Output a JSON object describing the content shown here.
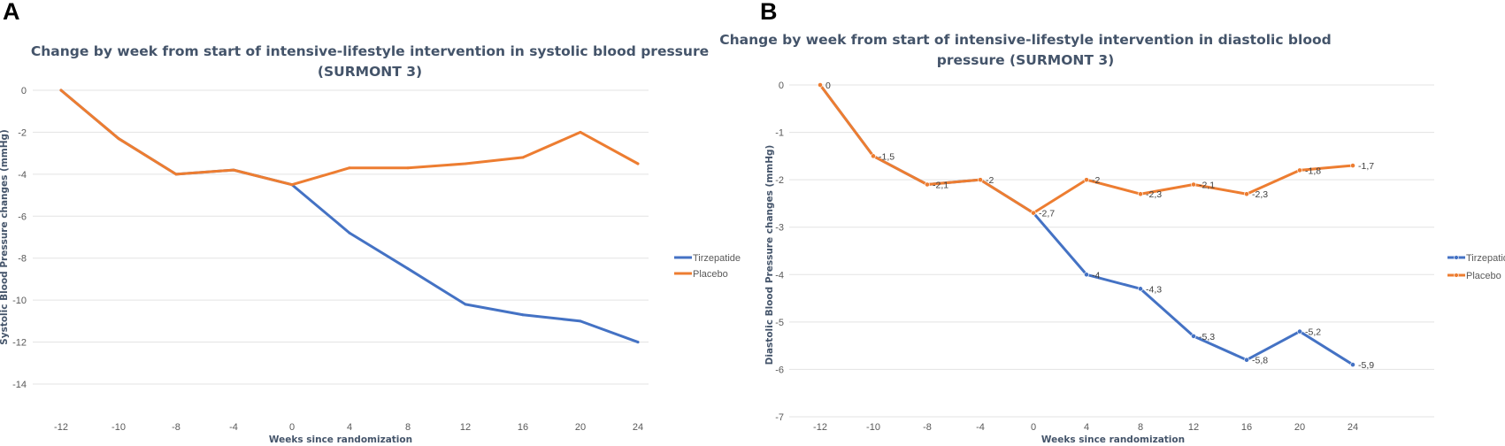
{
  "panels": [
    {
      "letter": "A"
    },
    {
      "letter": "B"
    }
  ],
  "chart_data": [
    {
      "type": "line",
      "title_lines": [
        "Change by week from start of intensive-lifestyle intervention in systolic blood pressure",
        "(SURMONT 3)"
      ],
      "xlabel": "Weeks since randomization",
      "ylabel": "Systolic Blood Pressure changes (mmHg)",
      "categories": [
        "-12",
        "-10",
        "-8",
        "-4",
        "0",
        "4",
        "8",
        "12",
        "16",
        "20",
        "24"
      ],
      "ylim": [
        -14,
        0
      ],
      "yticks": [
        0,
        -2,
        -4,
        -6,
        -8,
        -10,
        -12,
        -14
      ],
      "grid": true,
      "legend_position": "right",
      "markers": false,
      "data_labels": [],
      "series": [
        {
          "name": "Tirzepatide",
          "color": "#4472c4",
          "values": [
            0,
            -2.3,
            -4.0,
            -3.8,
            -4.5,
            -6.8,
            -8.5,
            -10.2,
            -10.7,
            -11.0,
            -12.0
          ]
        },
        {
          "name": "Placebo",
          "color": "#ed7d31",
          "values": [
            0,
            -2.3,
            -4.0,
            -3.8,
            -4.5,
            -3.7,
            -3.7,
            -3.5,
            -3.2,
            -2.0,
            -3.5
          ]
        }
      ]
    },
    {
      "type": "line",
      "title_lines": [
        "Change by week from start of intensive-lifestyle intervention in diastolic blood",
        "pressure (SURMONT 3)"
      ],
      "xlabel": "Weeks since randomization",
      "ylabel": "Diastolic Blood Pressure changes (mmHg)",
      "categories": [
        "-12",
        "-10",
        "-8",
        "-4",
        "0",
        "4",
        "8",
        "12",
        "16",
        "20",
        "24"
      ],
      "ylim": [
        -7,
        0
      ],
      "yticks": [
        0,
        -1,
        -2,
        -3,
        -4,
        -5,
        -6,
        -7
      ],
      "grid": true,
      "legend_position": "right",
      "markers": true,
      "data_labels": [
        {
          "text": "0",
          "category": "-12",
          "value": 0
        },
        {
          "text": "-1,5",
          "category": "-10",
          "value": -1.5
        },
        {
          "text": "-2,1",
          "category": "-8",
          "value": -2.1
        },
        {
          "text": "-2",
          "category": "-4",
          "value": -2.0
        },
        {
          "text": "-2,7",
          "category": "0",
          "value": -2.7
        },
        {
          "text": "-2",
          "category": "4",
          "value": -2.0
        },
        {
          "text": "-2,3",
          "category": "8",
          "value": -2.3
        },
        {
          "text": "-2,1",
          "category": "12",
          "value": -2.1
        },
        {
          "text": "-2,3",
          "category": "16",
          "value": -2.3
        },
        {
          "text": "-1,8",
          "category": "20",
          "value": -1.8
        },
        {
          "text": "-1,7",
          "category": "24",
          "value": -1.7
        },
        {
          "text": "-4",
          "category": "4",
          "value": -4.0
        },
        {
          "text": "-4,3",
          "category": "8",
          "value": -4.3
        },
        {
          "text": "-5,3",
          "category": "12",
          "value": -5.3
        },
        {
          "text": "-5,8",
          "category": "16",
          "value": -5.8
        },
        {
          "text": "-5,2",
          "category": "20",
          "value": -5.2
        },
        {
          "text": "-5,9",
          "category": "24",
          "value": -5.9
        }
      ],
      "series": [
        {
          "name": "Tirzepatide",
          "color": "#4472c4",
          "values": [
            0,
            -1.5,
            -2.1,
            -2.0,
            -2.7,
            -4.0,
            -4.3,
            -5.3,
            -5.8,
            -5.2,
            -5.9
          ]
        },
        {
          "name": "Placebo",
          "color": "#ed7d31",
          "values": [
            0,
            -1.5,
            -2.1,
            -2.0,
            -2.7,
            -2.0,
            -2.3,
            -2.1,
            -2.3,
            -1.8,
            -1.7
          ]
        }
      ]
    }
  ]
}
